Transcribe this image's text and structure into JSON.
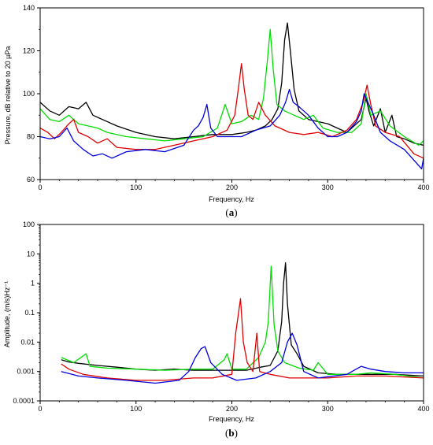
{
  "chart_data": [
    {
      "type": "line",
      "panel_label": "a",
      "xlabel": "Frequency, Hz",
      "ylabel": "Pressure, dB relative to 20 µPa",
      "xlim": [
        0,
        400
      ],
      "ylim": [
        60,
        140
      ],
      "yscale": "linear",
      "xticks": [
        0,
        100,
        200,
        300,
        400
      ],
      "yticks": [
        60,
        80,
        100,
        120,
        140
      ],
      "grid": false,
      "legend": "none",
      "series": [
        {
          "color": "#000000",
          "points": [
            [
              0,
              96
            ],
            [
              10,
              92
            ],
            [
              20,
              90
            ],
            [
              30,
              94
            ],
            [
              40,
              93
            ],
            [
              48,
              96
            ],
            [
              55,
              90
            ],
            [
              65,
              88
            ],
            [
              80,
              85
            ],
            [
              100,
              82
            ],
            [
              120,
              80
            ],
            [
              140,
              79
            ],
            [
              160,
              80
            ],
            [
              180,
              81
            ],
            [
              200,
              81
            ],
            [
              215,
              82
            ],
            [
              225,
              83
            ],
            [
              235,
              85
            ],
            [
              242,
              88
            ],
            [
              248,
              93
            ],
            [
              252,
              105
            ],
            [
              255,
              125
            ],
            [
              258,
              133
            ],
            [
              261,
              120
            ],
            [
              265,
              102
            ],
            [
              270,
              92
            ],
            [
              280,
              88
            ],
            [
              300,
              86
            ],
            [
              320,
              82
            ],
            [
              335,
              88
            ],
            [
              340,
              98
            ],
            [
              343,
              92
            ],
            [
              348,
              85
            ],
            [
              355,
              93
            ],
            [
              360,
              82
            ],
            [
              367,
              90
            ],
            [
              372,
              80
            ],
            [
              380,
              79
            ],
            [
              390,
              77
            ],
            [
              400,
              76
            ]
          ]
        },
        {
          "color": "#00dd00",
          "points": [
            [
              0,
              93
            ],
            [
              10,
              88
            ],
            [
              20,
              87
            ],
            [
              30,
              90
            ],
            [
              40,
              86
            ],
            [
              50,
              85
            ],
            [
              60,
              84
            ],
            [
              70,
              82
            ],
            [
              90,
              80
            ],
            [
              110,
              79
            ],
            [
              130,
              78
            ],
            [
              150,
              79
            ],
            [
              170,
              80
            ],
            [
              185,
              84
            ],
            [
              193,
              95
            ],
            [
              200,
              86
            ],
            [
              210,
              87
            ],
            [
              220,
              90
            ],
            [
              228,
              88
            ],
            [
              233,
              98
            ],
            [
              237,
              115
            ],
            [
              240,
              130
            ],
            [
              243,
              112
            ],
            [
              247,
              95
            ],
            [
              255,
              92
            ],
            [
              265,
              90
            ],
            [
              275,
              88
            ],
            [
              285,
              90
            ],
            [
              295,
              84
            ],
            [
              310,
              82
            ],
            [
              325,
              82
            ],
            [
              335,
              86
            ],
            [
              340,
              100
            ],
            [
              345,
              90
            ],
            [
              355,
              92
            ],
            [
              365,
              85
            ],
            [
              380,
              80
            ],
            [
              395,
              76
            ],
            [
              400,
              78
            ]
          ]
        },
        {
          "color": "#e00000",
          "points": [
            [
              0,
              84
            ],
            [
              8,
              82
            ],
            [
              15,
              79
            ],
            [
              22,
              82
            ],
            [
              30,
              86
            ],
            [
              35,
              88
            ],
            [
              40,
              82
            ],
            [
              50,
              80
            ],
            [
              60,
              77
            ],
            [
              70,
              79
            ],
            [
              80,
              75
            ],
            [
              100,
              74
            ],
            [
              120,
              74
            ],
            [
              140,
              76
            ],
            [
              160,
              78
            ],
            [
              180,
              80
            ],
            [
              195,
              83
            ],
            [
              203,
              90
            ],
            [
              207,
              103
            ],
            [
              210,
              114
            ],
            [
              213,
              102
            ],
            [
              217,
              90
            ],
            [
              222,
              88
            ],
            [
              228,
              96
            ],
            [
              235,
              90
            ],
            [
              245,
              85
            ],
            [
              260,
              82
            ],
            [
              275,
              81
            ],
            [
              290,
              82
            ],
            [
              305,
              80
            ],
            [
              320,
              83
            ],
            [
              330,
              88
            ],
            [
              337,
              96
            ],
            [
              341,
              104
            ],
            [
              345,
              95
            ],
            [
              350,
              85
            ],
            [
              360,
              82
            ],
            [
              375,
              80
            ],
            [
              390,
              72
            ],
            [
              400,
              70
            ]
          ]
        },
        {
          "color": "#0000dd",
          "points": [
            [
              0,
              80
            ],
            [
              10,
              79
            ],
            [
              20,
              80
            ],
            [
              28,
              84
            ],
            [
              35,
              78
            ],
            [
              45,
              74
            ],
            [
              55,
              71
            ],
            [
              65,
              72
            ],
            [
              75,
              70
            ],
            [
              90,
              73
            ],
            [
              110,
              74
            ],
            [
              130,
              73
            ],
            [
              150,
              76
            ],
            [
              160,
              83
            ],
            [
              165,
              85
            ],
            [
              170,
              89
            ],
            [
              174,
              95
            ],
            [
              178,
              84
            ],
            [
              185,
              80
            ],
            [
              195,
              80
            ],
            [
              210,
              80
            ],
            [
              225,
              83
            ],
            [
              240,
              85
            ],
            [
              250,
              90
            ],
            [
              256,
              96
            ],
            [
              260,
              102
            ],
            [
              264,
              96
            ],
            [
              270,
              94
            ],
            [
              280,
              90
            ],
            [
              290,
              84
            ],
            [
              300,
              80
            ],
            [
              310,
              80
            ],
            [
              320,
              82
            ],
            [
              330,
              87
            ],
            [
              335,
              92
            ],
            [
              338,
              100
            ],
            [
              342,
              96
            ],
            [
              348,
              90
            ],
            [
              355,
              82
            ],
            [
              365,
              78
            ],
            [
              380,
              74
            ],
            [
              392,
              68
            ],
            [
              398,
              65
            ],
            [
              400,
              70
            ]
          ]
        }
      ]
    },
    {
      "type": "line",
      "panel_label": "b",
      "xlabel": "Frequency, Hz",
      "ylabel": "Amplitude, (m/s)Hz⁻¹",
      "xlim": [
        0,
        400
      ],
      "ylim": [
        0.0001,
        100
      ],
      "yscale": "log",
      "xticks": [
        0,
        100,
        200,
        300,
        400
      ],
      "yticks": [
        0.0001,
        0.001,
        0.01,
        0.1,
        1,
        10,
        100
      ],
      "ytick_labels": [
        "0.0001",
        "0.001",
        "0.01",
        "0.1",
        "1",
        "10",
        "100"
      ],
      "grid": false,
      "legend": "none",
      "series": [
        {
          "color": "#000000",
          "points": [
            [
              22,
              0.0025
            ],
            [
              30,
              0.0021
            ],
            [
              40,
              0.0019
            ],
            [
              60,
              0.0016
            ],
            [
              80,
              0.0014
            ],
            [
              100,
              0.0012
            ],
            [
              120,
              0.0011
            ],
            [
              140,
              0.0012
            ],
            [
              160,
              0.0011
            ],
            [
              180,
              0.0011
            ],
            [
              200,
              0.0011
            ],
            [
              215,
              0.0011
            ],
            [
              230,
              0.0014
            ],
            [
              240,
              0.0016
            ],
            [
              248,
              0.005
            ],
            [
              252,
              0.05
            ],
            [
              254,
              1
            ],
            [
              256,
              5
            ],
            [
              258,
              0.2
            ],
            [
              262,
              0.008
            ],
            [
              268,
              0.004
            ],
            [
              275,
              0.0015
            ],
            [
              290,
              0.0009
            ],
            [
              310,
              0.0008
            ],
            [
              340,
              0.0008
            ],
            [
              370,
              0.0008
            ],
            [
              400,
              0.0007
            ]
          ]
        },
        {
          "color": "#00dd00",
          "points": [
            [
              22,
              0.003
            ],
            [
              35,
              0.002
            ],
            [
              48,
              0.004
            ],
            [
              52,
              0.0015
            ],
            [
              70,
              0.0013
            ],
            [
              100,
              0.0012
            ],
            [
              130,
              0.0011
            ],
            [
              160,
              0.0012
            ],
            [
              180,
              0.0012
            ],
            [
              192,
              0.0025
            ],
            [
              195,
              0.004
            ],
            [
              200,
              0.0012
            ],
            [
              215,
              0.0012
            ],
            [
              228,
              0.003
            ],
            [
              235,
              0.01
            ],
            [
              238,
              0.05
            ],
            [
              241,
              3.8
            ],
            [
              244,
              0.04
            ],
            [
              248,
              0.005
            ],
            [
              255,
              0.002
            ],
            [
              270,
              0.0013
            ],
            [
              285,
              0.0011
            ],
            [
              290,
              0.002
            ],
            [
              300,
              0.0008
            ],
            [
              330,
              0.0008
            ],
            [
              345,
              0.0009
            ],
            [
              370,
              0.0008
            ],
            [
              400,
              0.0006
            ]
          ]
        },
        {
          "color": "#e00000",
          "points": [
            [
              22,
              0.0018
            ],
            [
              30,
              0.0012
            ],
            [
              45,
              0.0008
            ],
            [
              70,
              0.0006
            ],
            [
              100,
              0.0005
            ],
            [
              130,
              0.0005
            ],
            [
              160,
              0.0006
            ],
            [
              180,
              0.0006
            ],
            [
              200,
              0.0008
            ],
            [
              204,
              0.02
            ],
            [
              207,
              0.1
            ],
            [
              209,
              0.3
            ],
            [
              212,
              0.01
            ],
            [
              216,
              0.002
            ],
            [
              222,
              0.001
            ],
            [
              226,
              0.02
            ],
            [
              229,
              0.001
            ],
            [
              240,
              0.0008
            ],
            [
              260,
              0.0006
            ],
            [
              280,
              0.0006
            ],
            [
              300,
              0.0006
            ],
            [
              330,
              0.0007
            ],
            [
              360,
              0.0007
            ],
            [
              400,
              0.0006
            ]
          ]
        },
        {
          "color": "#0000dd",
          "points": [
            [
              22,
              0.001
            ],
            [
              40,
              0.0007
            ],
            [
              60,
              0.0006
            ],
            [
              90,
              0.0005
            ],
            [
              120,
              0.0004
            ],
            [
              145,
              0.0005
            ],
            [
              155,
              0.001
            ],
            [
              162,
              0.003
            ],
            [
              168,
              0.006
            ],
            [
              172,
              0.007
            ],
            [
              178,
              0.002
            ],
            [
              190,
              0.0008
            ],
            [
              205,
              0.0005
            ],
            [
              225,
              0.0006
            ],
            [
              240,
              0.001
            ],
            [
              252,
              0.002
            ],
            [
              258,
              0.01
            ],
            [
              263,
              0.02
            ],
            [
              268,
              0.008
            ],
            [
              275,
              0.001
            ],
            [
              290,
              0.0006
            ],
            [
              320,
              0.0008
            ],
            [
              335,
              0.0015
            ],
            [
              345,
              0.0012
            ],
            [
              360,
              0.001
            ],
            [
              380,
              0.0009
            ],
            [
              400,
              0.0009
            ]
          ]
        }
      ]
    }
  ]
}
